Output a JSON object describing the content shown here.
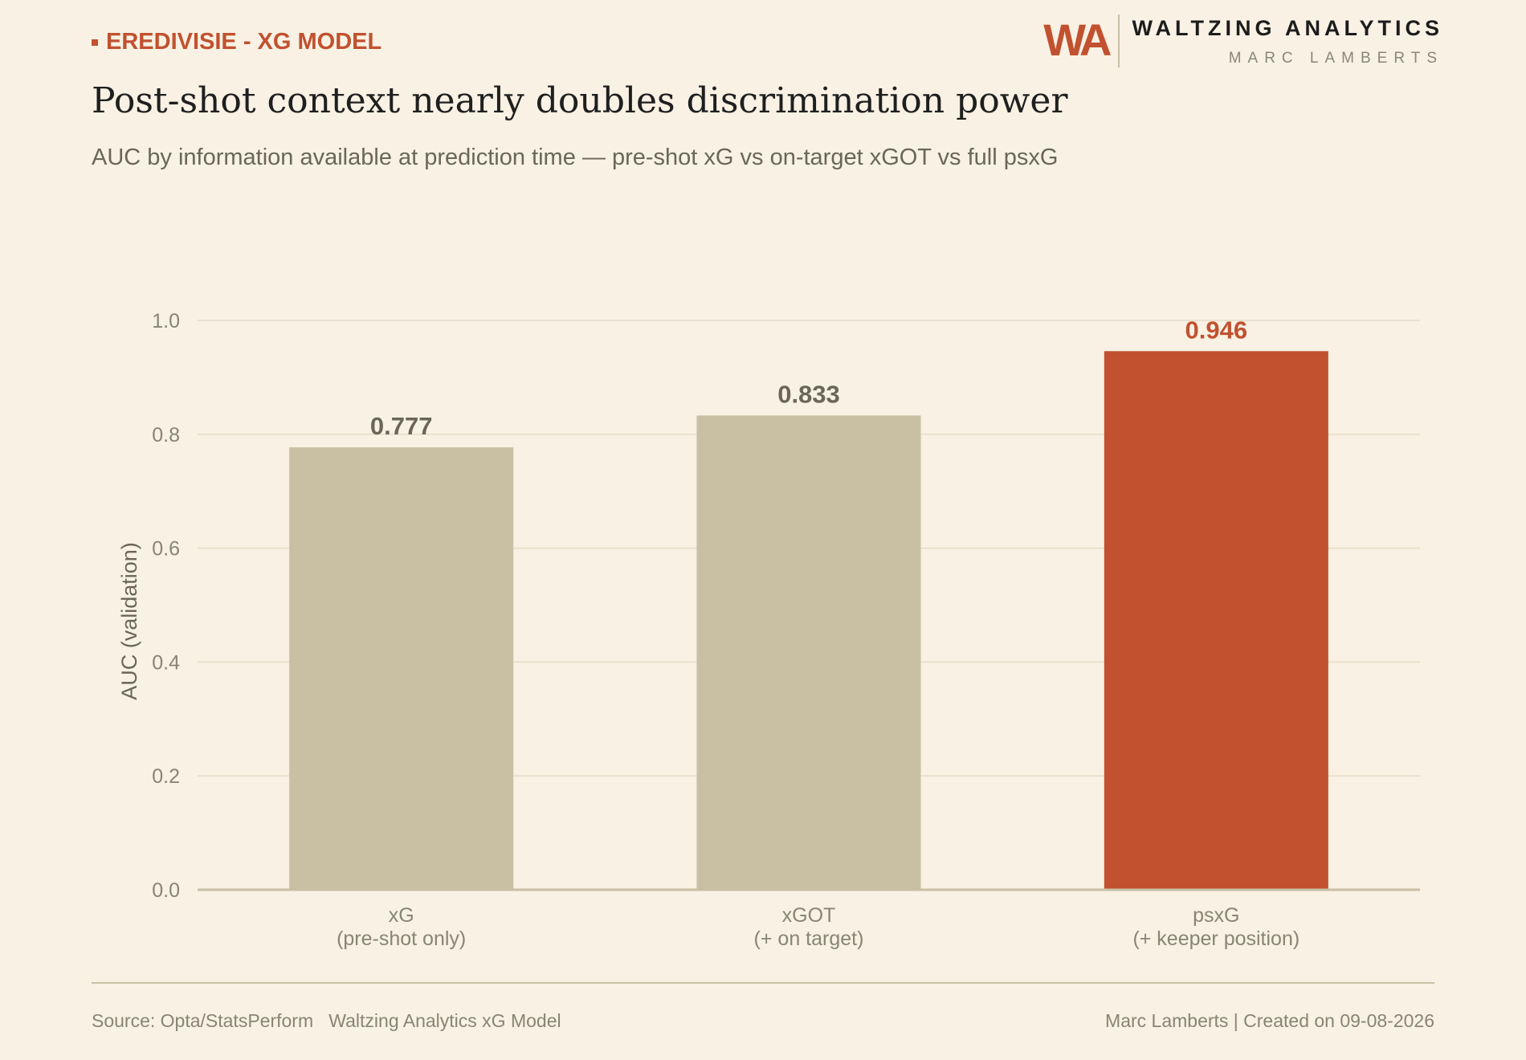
{
  "header": {
    "tag": "EREDIVISIE - XG MODEL",
    "title": "Post-shot context nearly doubles discrimination power",
    "subtitle": "AUC by information available at prediction time — pre-shot xG vs on-target xGOT vs full psxG"
  },
  "brand": {
    "logo": "WA",
    "name": "WALTZING  ANALYTICS",
    "author": "MARC  LAMBERTS"
  },
  "chart_data": {
    "type": "bar",
    "title": "",
    "xlabel": "",
    "ylabel": "AUC (validation)",
    "categories": [
      [
        "xG",
        "(pre-shot only)"
      ],
      [
        "xGOT",
        "(+ on target)"
      ],
      [
        "psxG",
        "(+ keeper position)"
      ]
    ],
    "values": [
      0.777,
      0.833,
      0.946
    ],
    "value_labels": [
      "0.777",
      "0.833",
      "0.946"
    ],
    "highlight_index": 2,
    "ylim": [
      0,
      1.0
    ],
    "yticks": [
      0.0,
      0.2,
      0.4,
      0.6,
      0.8,
      1.0
    ],
    "ytick_labels": [
      "0.0",
      "0.2",
      "0.4",
      "0.6",
      "0.8",
      "1.0"
    ],
    "grid": true,
    "legend": "none",
    "colors": {
      "base": "#c9bfa3",
      "highlight": "#c1512f"
    }
  },
  "footer": {
    "source": "Source: Opta/StatsPerform   Waltzing Analytics xG Model",
    "credit": "Marc Lamberts | Created on 09-08-2026"
  }
}
